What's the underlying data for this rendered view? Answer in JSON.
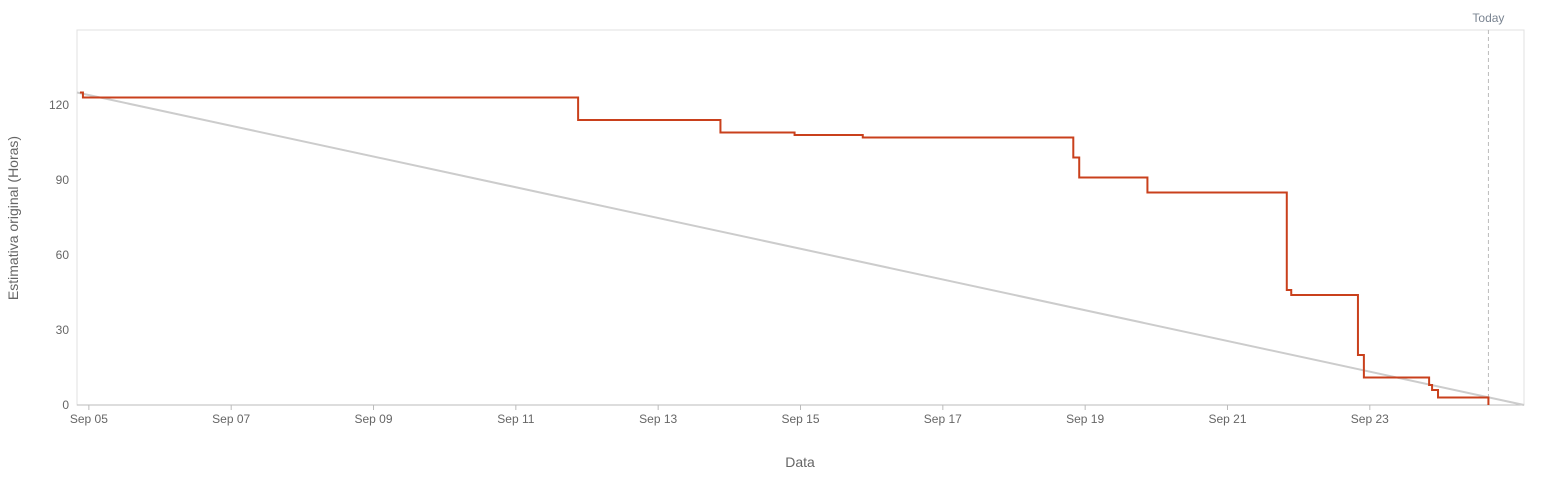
{
  "chart_data": {
    "type": "line",
    "xlabel": "Data",
    "ylabel": "Estimativa original (Horas)",
    "x_unit": "date",
    "xlim": [
      "2024-09-04T20:00",
      "2024-09-25T04:00"
    ],
    "ylim": [
      0,
      150
    ],
    "y_ticks": [
      0,
      30,
      60,
      90,
      120
    ],
    "x_ticks": [
      {
        "date": "2024-09-05T00:00",
        "label": "Sep 05"
      },
      {
        "date": "2024-09-07T00:00",
        "label": "Sep 07"
      },
      {
        "date": "2024-09-09T00:00",
        "label": "Sep 09"
      },
      {
        "date": "2024-09-11T00:00",
        "label": "Sep 11"
      },
      {
        "date": "2024-09-13T00:00",
        "label": "Sep 13"
      },
      {
        "date": "2024-09-15T00:00",
        "label": "Sep 15"
      },
      {
        "date": "2024-09-17T00:00",
        "label": "Sep 17"
      },
      {
        "date": "2024-09-19T00:00",
        "label": "Sep 19"
      },
      {
        "date": "2024-09-21T00:00",
        "label": "Sep 21"
      },
      {
        "date": "2024-09-23T00:00",
        "label": "Sep 23"
      }
    ],
    "grid": false,
    "today": {
      "label": "Today",
      "date": "2024-09-24T16:00"
    },
    "series": [
      {
        "role": "remaining",
        "color": "#c9401c",
        "step": true,
        "points": [
          [
            "2024-09-04T21:00",
            125
          ],
          [
            "2024-09-04T22:00",
            123
          ],
          [
            "2024-09-11T21:00",
            114
          ],
          [
            "2024-09-13T21:00",
            109
          ],
          [
            "2024-09-14T22:00",
            108
          ],
          [
            "2024-09-15T21:00",
            107
          ],
          [
            "2024-09-18T20:00",
            99
          ],
          [
            "2024-09-18T22:00",
            91
          ],
          [
            "2024-09-19T21:00",
            85
          ],
          [
            "2024-09-21T20:00",
            46
          ],
          [
            "2024-09-21T21:30",
            44
          ],
          [
            "2024-09-22T20:00",
            20
          ],
          [
            "2024-09-22T22:00",
            11
          ],
          [
            "2024-09-23T20:00",
            8
          ],
          [
            "2024-09-23T21:00",
            6
          ],
          [
            "2024-09-23T23:00",
            3
          ],
          [
            "2024-09-24T16:00",
            0
          ]
        ]
      },
      {
        "role": "ideal",
        "color": "#cccccc",
        "step": false,
        "points": [
          [
            "2024-09-04T20:00",
            125
          ],
          [
            "2024-09-25T04:00",
            0
          ]
        ]
      }
    ]
  }
}
